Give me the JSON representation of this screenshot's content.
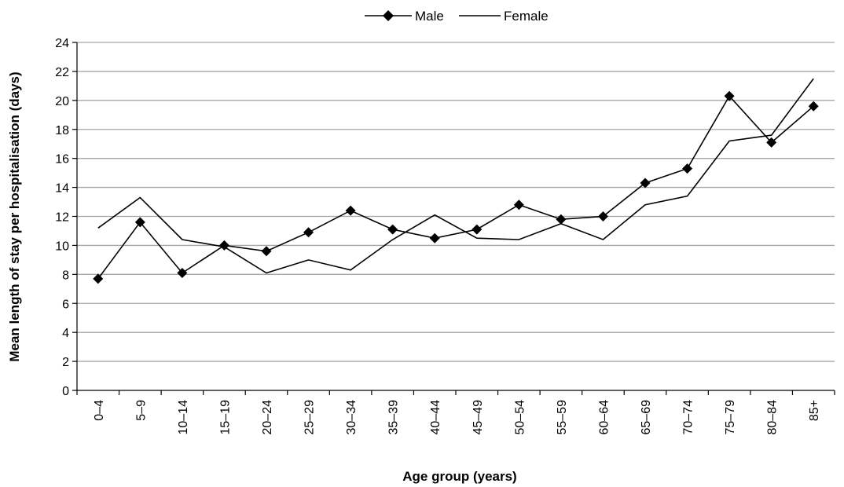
{
  "chart_data": {
    "type": "line",
    "title": "",
    "xlabel": "Age group (years)",
    "ylabel": "Mean length of stay per hospitalisation (days)",
    "ylim": [
      0,
      24
    ],
    "yticks": [
      "0",
      "2",
      "4",
      "6",
      "8",
      "10",
      "12",
      "14",
      "16",
      "18",
      "20",
      "22",
      "24"
    ],
    "grid": "horizontal",
    "legend": "top-center",
    "categories": [
      "0–4",
      "5–9",
      "10–14",
      "15–19",
      "20–24",
      "25–29",
      "30–34",
      "35–39",
      "40–44",
      "45–49",
      "50–54",
      "55–59",
      "60–64",
      "65–69",
      "70–74",
      "75–79",
      "80–84",
      "85+"
    ],
    "series": [
      {
        "name": "Male",
        "marker": "diamond",
        "color": "#000000",
        "values": [
          7.7,
          11.6,
          8.1,
          10.0,
          9.6,
          10.9,
          12.4,
          11.1,
          10.5,
          11.1,
          12.8,
          11.8,
          12.0,
          14.3,
          15.3,
          20.3,
          17.1,
          19.6
        ]
      },
      {
        "name": "Female",
        "marker": "none",
        "color": "#000000",
        "values": [
          11.2,
          13.3,
          10.4,
          9.9,
          8.1,
          9.0,
          8.3,
          10.4,
          12.1,
          10.5,
          10.4,
          11.5,
          10.4,
          12.8,
          13.4,
          17.2,
          17.6,
          21.5
        ]
      }
    ]
  }
}
